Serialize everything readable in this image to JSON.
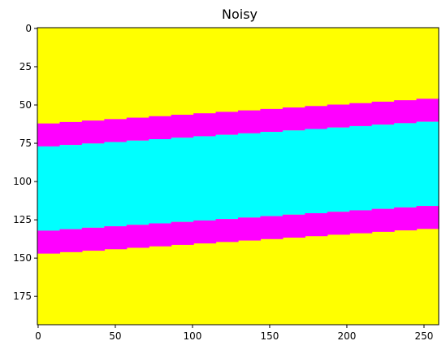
{
  "chart_data": {
    "type": "heatmap",
    "title": "Noisy",
    "xlabel": "",
    "ylabel": "",
    "xlim": [
      0,
      259
    ],
    "ylim": [
      193,
      0
    ],
    "y_inverted": true,
    "x_ticks": [
      0,
      50,
      100,
      150,
      200,
      250
    ],
    "x_tick_labels": [
      "0",
      "50",
      "100",
      "150",
      "200",
      "250"
    ],
    "y_ticks": [
      0,
      25,
      50,
      75,
      100,
      125,
      150,
      175
    ],
    "y_tick_labels": [
      "0",
      "25",
      "50",
      "75",
      "100",
      "125",
      "150",
      "175"
    ],
    "grid": false,
    "legend": "none",
    "colors": {
      "background_region": "#ffff00",
      "edge_band": "#ff00ff",
      "center_band": "#00ffff"
    },
    "regions": [
      {
        "name": "upper-edge-band",
        "color": "#ff00ff",
        "top_boundary": {
          "x": [
            0,
            259
          ],
          "y": [
            62.5,
            45.5
          ]
        },
        "bottom_boundary": {
          "x": [
            0,
            259
          ],
          "y": [
            77.5,
            60.5
          ]
        }
      },
      {
        "name": "center-band",
        "color": "#00ffff",
        "top_boundary": {
          "x": [
            0,
            259
          ],
          "y": [
            77.5,
            60.5
          ]
        },
        "bottom_boundary": {
          "x": [
            0,
            259
          ],
          "y": [
            132.5,
            115.5
          ]
        }
      },
      {
        "name": "lower-edge-band",
        "color": "#ff00ff",
        "top_boundary": {
          "x": [
            0,
            259
          ],
          "y": [
            132.5,
            115.5
          ]
        },
        "bottom_boundary": {
          "x": [
            0,
            259
          ],
          "y": [
            147.5,
            130.5
          ]
        }
      }
    ]
  }
}
